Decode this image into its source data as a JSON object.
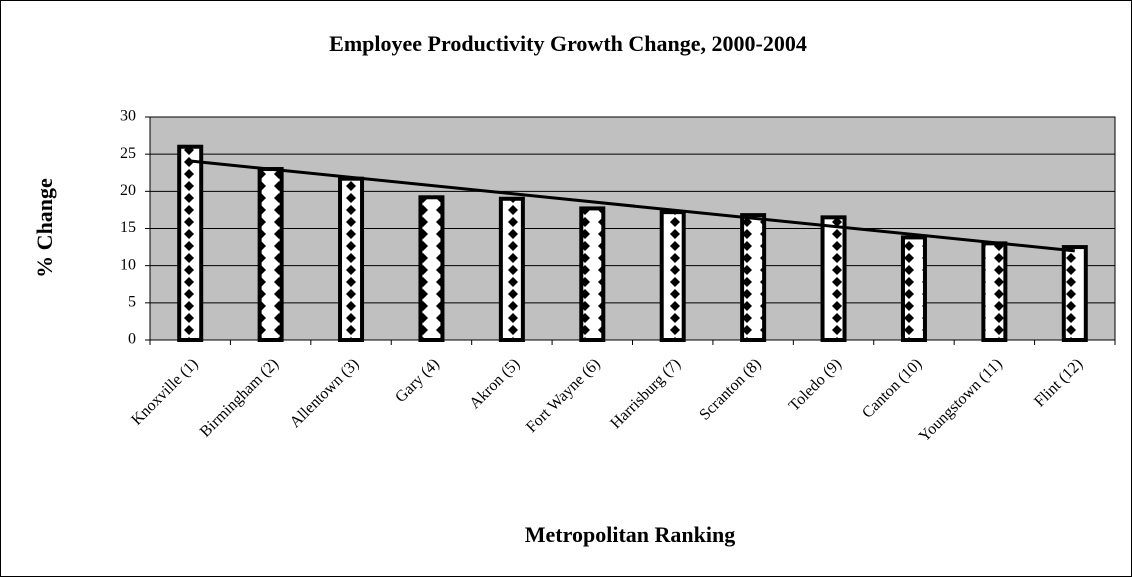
{
  "chart_data": {
    "type": "bar",
    "title": "Employee Productivity Growth Change, 2000-2004",
    "x_label": "Metropolitan Ranking",
    "y_label": "% Change",
    "categories": [
      "Knoxville (1)",
      "Birmingham (2)",
      "Allentown (3)",
      "Gary (4)",
      "Akron (5)",
      "Fort Wayne (6)",
      "Harrisburg (7)",
      "Scranton (8)",
      "Toledo (9)",
      "Canton (10)",
      "Youngstown (11)",
      "Flint (12)"
    ],
    "values": [
      26,
      23,
      21.7,
      19.2,
      19,
      17.7,
      17.2,
      16.8,
      16.5,
      13.8,
      13,
      12.5
    ],
    "color": "#000000",
    "plot_background": "#c0c0c0",
    "ylim": [
      0,
      30
    ],
    "yticks": [
      0,
      5,
      10,
      15,
      20,
      25,
      30
    ],
    "grid": true,
    "trendline": "linear"
  }
}
